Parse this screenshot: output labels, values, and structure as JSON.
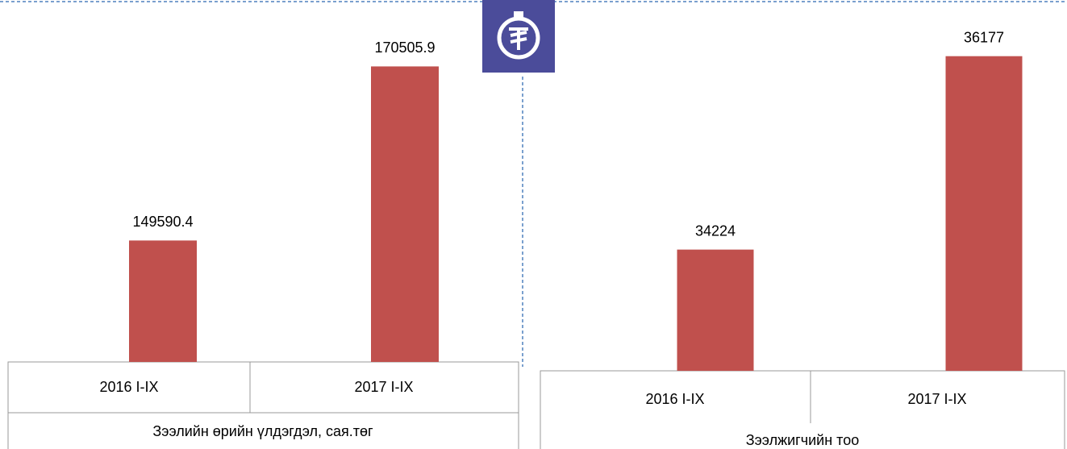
{
  "chart_data": [
    {
      "type": "bar",
      "title": "Зээлийн өрийн үлдэгдэл, сая.төг",
      "categories": [
        "2016 I-IX",
        "2017 I-IX"
      ],
      "values": [
        149590.4,
        170505.9
      ],
      "color": "#c0504d",
      "ylim": [
        135000,
        175000
      ]
    },
    {
      "type": "bar",
      "title": "Зээлжигчийн тоо",
      "categories": [
        "2016 I-IX",
        "2017 I-IX"
      ],
      "values": [
        34224,
        36177
      ],
      "color": "#c0504d",
      "ylim": [
        33000,
        36500
      ]
    }
  ]
}
